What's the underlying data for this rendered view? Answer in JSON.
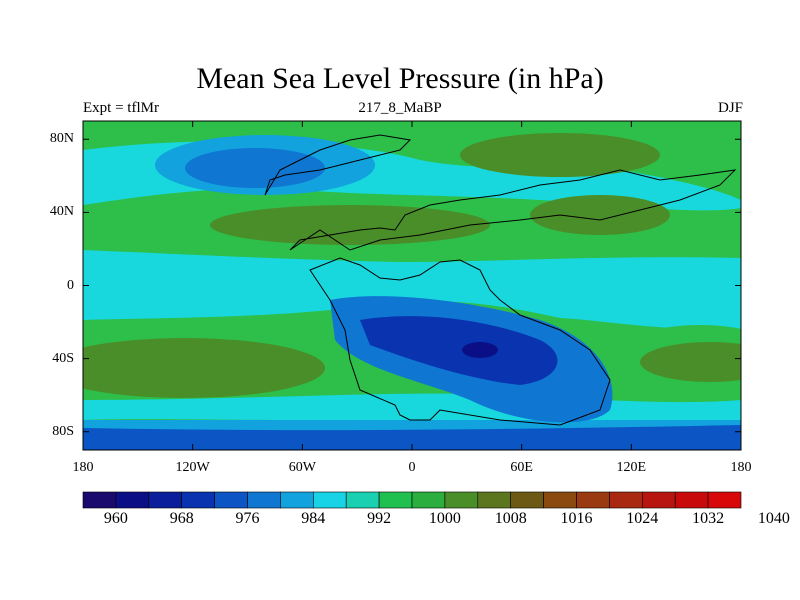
{
  "title": "Mean Sea Level Pressure (in hPa)",
  "subtitle_left": "Expt = tflMr",
  "subtitle_center": "217_8_MaBP",
  "subtitle_right": "DJF",
  "lat_labels": [
    "80N",
    "40N",
    "0",
    "40S",
    "80S"
  ],
  "lat_values": [
    80,
    40,
    0,
    -40,
    -80
  ],
  "lon_labels": [
    "180",
    "120W",
    "60W",
    "0",
    "60E",
    "120E",
    "180"
  ],
  "lon_values": [
    -180,
    -120,
    -60,
    0,
    60,
    120,
    180
  ],
  "colorbar": {
    "colors": [
      "#1a0a6e",
      "#0b0f86",
      "#0a1e9c",
      "#0a33b0",
      "#0b56c4",
      "#0f76d2",
      "#12a2de",
      "#18d2e6",
      "#1ad0b0",
      "#20c050",
      "#2cae3e",
      "#4a8e2a",
      "#5c7620",
      "#6c5a14",
      "#8a4a10",
      "#9a3a10",
      "#a82810",
      "#b81410",
      "#c80a0a",
      "#d80808"
    ],
    "tick_labels": [
      "960",
      "968",
      "976",
      "984",
      "992",
      "1000",
      "1008",
      "1016",
      "1024",
      "1032",
      "1040"
    ],
    "tick_positions": [
      1,
      3,
      5,
      7,
      9,
      11,
      13,
      15,
      17,
      19,
      21
    ]
  },
  "regions": [
    {
      "name": "arctic-green-band",
      "lon": [
        -180,
        180
      ],
      "lat": [
        60,
        90
      ],
      "color": "#2ebf4a"
    },
    {
      "name": "north-high-belt",
      "lon": [
        -180,
        180
      ],
      "lat": [
        20,
        55
      ],
      "color": "#2ebf4a"
    },
    {
      "name": "equatorial-cyan",
      "lon": [
        -180,
        180
      ],
      "lat": [
        -25,
        20
      ],
      "color": "#18d8de"
    }
  ],
  "low_pressure_systems": [
    {
      "name": "aleutian-low",
      "center": [
        -115,
        67
      ],
      "level": 992
    },
    {
      "name": "southern-ocean-low",
      "center": [
        40,
        -35
      ],
      "level": 968
    }
  ],
  "high_pressure_systems": [
    {
      "name": "south-pacific-high",
      "center": [
        -150,
        -45
      ],
      "level": 1016
    },
    {
      "name": "north-atlantic-high",
      "center": [
        -30,
        32
      ],
      "level": 1016
    },
    {
      "name": "south-indian-high",
      "center": [
        165,
        -40
      ],
      "level": 1016
    }
  ]
}
